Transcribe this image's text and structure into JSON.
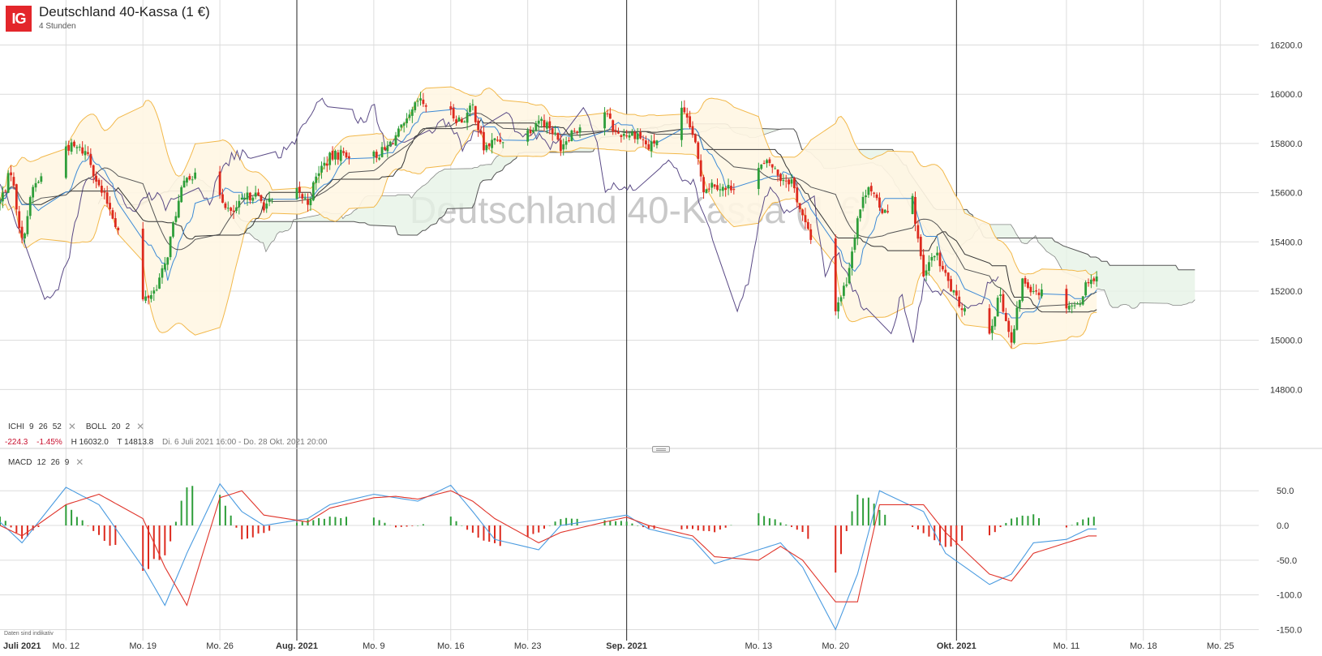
{
  "header": {
    "logo_text": "IG",
    "title": "Deutschland 40-Kassa (1 €)",
    "subtitle": "4 Stunden",
    "watermark": "Deutschland 40-Kassa (1 €)"
  },
  "indicators": {
    "ichi": {
      "name": "ICHI",
      "params": [
        "9",
        "26",
        "52"
      ]
    },
    "boll": {
      "name": "BOLL",
      "params": [
        "20",
        "2"
      ]
    },
    "macd": {
      "name": "MACD",
      "params": [
        "12",
        "26",
        "9"
      ]
    },
    "close_glyph": "✕"
  },
  "stats": {
    "change": "-224.3",
    "change_pct": "-1.45%",
    "high": "H 16032.0",
    "low": "T 14813.8",
    "range": "Di. 6 Juli 2021 16:00 - Do. 28 Okt. 2021 20:00"
  },
  "disclaimer": "Daten sind indikativ",
  "colors": {
    "up": "#2e9e3a",
    "down": "#dd2a1e",
    "boll": "#f2b84a",
    "boll_fill": "#fff6e3",
    "tenkan": "#3c8ad6",
    "kijun": "#333333",
    "chikou": "#5a4a86",
    "senkou": "#555555",
    "kumo_up": "#e6f3e6",
    "kumo_down": "#f7e6e6",
    "macd_line": "#4a9be0",
    "signal_line": "#e0342a",
    "watermark": "#c9c9c9",
    "grid": "#dcdcdc",
    "month_line": "#222222"
  },
  "chart_data": [
    {
      "type": "candlestick",
      "title": "Deutschland 40-Kassa (1 €)",
      "interval": "4 Stunden",
      "price_range": [
        14620,
        16350
      ],
      "yticks": [
        14800,
        15000,
        15200,
        15400,
        15600,
        15800,
        16000,
        16200
      ],
      "ytick_labels": [
        "14800.0",
        "15000.0",
        "15200.0",
        "15400.0",
        "15600.0",
        "15800.0",
        "16000.0",
        "16200.0"
      ],
      "period_high": 16032.0,
      "period_low": 14813.8,
      "change": -224.3,
      "change_pct": -1.45,
      "date_range": [
        "2021-07-06",
        "2021-10-28"
      ],
      "x_range": [
        "2021-07-06",
        "2021-10-28"
      ],
      "xticks": [
        {
          "date": "2021-07-05",
          "label": "Juli 2021",
          "major": true
        },
        {
          "date": "2021-07-12",
          "label": "Mo. 12",
          "major": false
        },
        {
          "date": "2021-07-19",
          "label": "Mo. 19",
          "major": false
        },
        {
          "date": "2021-07-26",
          "label": "Mo. 26",
          "major": false
        },
        {
          "date": "2021-08-02",
          "label": "Aug. 2021",
          "major": true
        },
        {
          "date": "2021-08-09",
          "label": "Mo. 9",
          "major": false
        },
        {
          "date": "2021-08-16",
          "label": "Mo. 16",
          "major": false
        },
        {
          "date": "2021-08-23",
          "label": "Mo. 23",
          "major": false
        },
        {
          "date": "2021-09-01",
          "label": "Sep. 2021",
          "major": true
        },
        {
          "date": "2021-09-13",
          "label": "Mo. 13",
          "major": false
        },
        {
          "date": "2021-09-20",
          "label": "Mo. 20",
          "major": false
        },
        {
          "date": "2021-10-01",
          "label": "Okt. 2021",
          "major": true
        },
        {
          "date": "2021-10-11",
          "label": "Mo. 11",
          "major": false
        },
        {
          "date": "2021-10-18",
          "label": "Mo. 18",
          "major": false
        },
        {
          "date": "2021-10-25",
          "label": "Mo. 25",
          "major": false
        }
      ],
      "close_path": [
        [
          "2021-07-06",
          15560
        ],
        [
          "2021-07-07",
          15690
        ],
        [
          "2021-07-08",
          15400
        ],
        [
          "2021-07-09",
          15620
        ],
        [
          "2021-07-12",
          15790
        ],
        [
          "2021-07-13",
          15780
        ],
        [
          "2021-07-14",
          15760
        ],
        [
          "2021-07-15",
          15620
        ],
        [
          "2021-07-16",
          15540
        ],
        [
          "2021-07-19",
          15160
        ],
        [
          "2021-07-20",
          15200
        ],
        [
          "2021-07-21",
          15300
        ],
        [
          "2021-07-22",
          15520
        ],
        [
          "2021-07-23",
          15680
        ],
        [
          "2021-07-26",
          15600
        ],
        [
          "2021-07-27",
          15510
        ],
        [
          "2021-07-28",
          15560
        ],
        [
          "2021-07-29",
          15600
        ],
        [
          "2021-07-30",
          15550
        ],
        [
          "2021-08-02",
          15600
        ],
        [
          "2021-08-03",
          15560
        ],
        [
          "2021-08-04",
          15690
        ],
        [
          "2021-08-05",
          15740
        ],
        [
          "2021-08-06",
          15760
        ],
        [
          "2021-08-09",
          15750
        ],
        [
          "2021-08-10",
          15770
        ],
        [
          "2021-08-11",
          15830
        ],
        [
          "2021-08-12",
          15880
        ],
        [
          "2021-08-13",
          15970
        ],
        [
          "2021-08-16",
          15920
        ],
        [
          "2021-08-17",
          15890
        ],
        [
          "2021-08-18",
          15950
        ],
        [
          "2021-08-19",
          15780
        ],
        [
          "2021-08-20",
          15810
        ],
        [
          "2021-08-23",
          15850
        ],
        [
          "2021-08-24",
          15900
        ],
        [
          "2021-08-25",
          15870
        ],
        [
          "2021-08-26",
          15790
        ],
        [
          "2021-08-27",
          15850
        ],
        [
          "2021-08-30",
          15930
        ],
        [
          "2021-08-31",
          15840
        ],
        [
          "2021-09-01",
          15840
        ],
        [
          "2021-09-02",
          15840
        ],
        [
          "2021-09-03",
          15780
        ],
        [
          "2021-09-06",
          15930
        ],
        [
          "2021-09-07",
          15840
        ],
        [
          "2021-09-08",
          15620
        ],
        [
          "2021-09-09",
          15640
        ],
        [
          "2021-09-10",
          15610
        ],
        [
          "2021-09-13",
          15700
        ],
        [
          "2021-09-14",
          15720
        ],
        [
          "2021-09-15",
          15660
        ],
        [
          "2021-09-16",
          15650
        ],
        [
          "2021-09-17",
          15500
        ],
        [
          "2021-09-20",
          15130
        ],
        [
          "2021-09-21",
          15240
        ],
        [
          "2021-09-22",
          15500
        ],
        [
          "2021-09-23",
          15640
        ],
        [
          "2021-09-24",
          15530
        ],
        [
          "2021-09-27",
          15570
        ],
        [
          "2021-09-28",
          15250
        ],
        [
          "2021-09-29",
          15360
        ],
        [
          "2021-09-30",
          15260
        ],
        [
          "2021-10-01",
          15160
        ],
        [
          "2021-10-04",
          15040
        ],
        [
          "2021-10-05",
          15190
        ],
        [
          "2021-10-06",
          14980
        ],
        [
          "2021-10-07",
          15240
        ],
        [
          "2021-10-08",
          15210
        ],
        [
          "2021-10-11",
          15150
        ],
        [
          "2021-10-12",
          15140
        ],
        [
          "2021-10-13",
          15250
        ]
      ],
      "series": [
        {
          "name": "ICHI"
        },
        {
          "name": "BOLL"
        }
      ]
    },
    {
      "type": "bar",
      "title": "MACD",
      "y_range": [
        -160,
        90
      ],
      "yticks": [
        -150,
        -100,
        -50,
        0,
        50
      ],
      "ytick_labels": [
        "-150.0",
        "-100.0",
        "-50.0",
        "0.0",
        "50.0"
      ],
      "x": [
        "2021-07-06",
        "2021-07-08",
        "2021-07-12",
        "2021-07-15",
        "2021-07-19",
        "2021-07-21",
        "2021-07-23",
        "2021-07-26",
        "2021-07-28",
        "2021-07-30",
        "2021-08-03",
        "2021-08-05",
        "2021-08-09",
        "2021-08-11",
        "2021-08-13",
        "2021-08-16",
        "2021-08-18",
        "2021-08-20",
        "2021-08-24",
        "2021-08-26",
        "2021-08-30",
        "2021-09-01",
        "2021-09-03",
        "2021-09-07",
        "2021-09-09",
        "2021-09-13",
        "2021-09-15",
        "2021-09-17",
        "2021-09-20",
        "2021-09-22",
        "2021-09-24",
        "2021-09-28",
        "2021-09-30",
        "2021-10-04",
        "2021-10-06",
        "2021-10-08",
        "2021-10-11",
        "2021-10-13"
      ],
      "series": [
        {
          "name": "MACD",
          "values": [
            5,
            -25,
            55,
            30,
            -60,
            -115,
            -40,
            60,
            20,
            0,
            10,
            30,
            45,
            40,
            35,
            58,
            20,
            -20,
            -35,
            0,
            10,
            15,
            -5,
            -20,
            -55,
            -35,
            -25,
            -60,
            -150,
            -70,
            50,
            20,
            -40,
            -85,
            -70,
            -25,
            -20,
            -5
          ]
        },
        {
          "name": "Signal",
          "values": [
            0,
            -15,
            30,
            45,
            10,
            -60,
            -115,
            40,
            50,
            15,
            5,
            25,
            40,
            42,
            38,
            50,
            35,
            10,
            -25,
            -10,
            5,
            12,
            0,
            -15,
            -45,
            -50,
            -30,
            -50,
            -110,
            -110,
            30,
            30,
            -10,
            -70,
            -80,
            -40,
            -25,
            -15
          ]
        },
        {
          "name": "Histogram",
          "values": [
            15,
            -20,
            28,
            -15,
            -60,
            -50,
            60,
            45,
            -20,
            -10,
            8,
            12,
            10,
            -3,
            0,
            12,
            -12,
            -30,
            -10,
            10,
            8,
            5,
            -5,
            -5,
            -10,
            18,
            5,
            -10,
            -65,
            50,
            22,
            -10,
            -30,
            -15,
            10,
            15,
            -3,
            12
          ]
        }
      ]
    }
  ]
}
